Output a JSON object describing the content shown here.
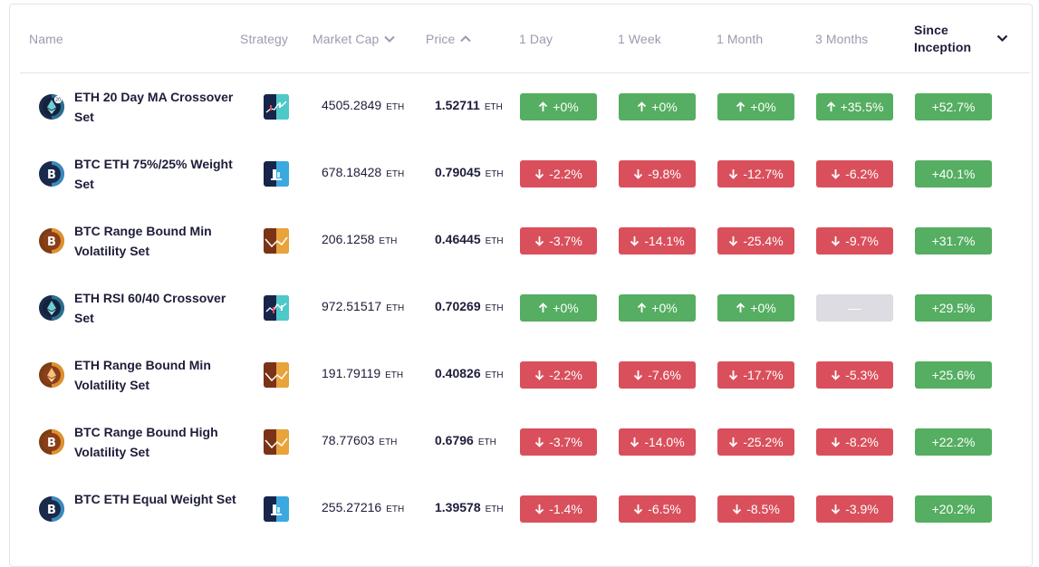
{
  "header": {
    "name": "Name",
    "strategy": "Strategy",
    "market_cap": "Market Cap",
    "price": "Price",
    "day": "1 Day",
    "week": "1 Week",
    "month": "1 Month",
    "three_months": "3 Months",
    "since_inception_line1": "Since",
    "since_inception_line2": "Inception"
  },
  "colors": {
    "up": "#55ae61",
    "down": "#d9505c",
    "neutral": "#dcdce2",
    "text": "#1d1d3a",
    "header_text": "#9b9bb0"
  },
  "rows": [
    {
      "asset_icon": "eth-20-icon",
      "name": "ETH 20 Day MA Crossover Set",
      "strategy_icon": "ma-crossover-strategy-icon",
      "market_cap": "4505.2849",
      "mcap_unit": "ETH",
      "price": "1.52711",
      "price_unit": "ETH",
      "day": {
        "text": "+0%",
        "dir": "up"
      },
      "week": {
        "text": "+0%",
        "dir": "up"
      },
      "month": {
        "text": "+0%",
        "dir": "up"
      },
      "three_months": {
        "text": "+35.5%",
        "dir": "up"
      },
      "since_inception": {
        "text": "+52.7%",
        "dir": "up"
      }
    },
    {
      "asset_icon": "btc-eth-icon",
      "name": "BTC ETH 75%/25% Weight Set",
      "strategy_icon": "weight-rebalance-strategy-icon",
      "market_cap": "678.18428",
      "mcap_unit": "ETH",
      "price": "0.79045",
      "price_unit": "ETH",
      "day": {
        "text": "-2.2%",
        "dir": "down"
      },
      "week": {
        "text": "-9.8%",
        "dir": "down"
      },
      "month": {
        "text": "-12.7%",
        "dir": "down"
      },
      "three_months": {
        "text": "-6.2%",
        "dir": "down"
      },
      "since_inception": {
        "text": "+40.1%",
        "dir": "up"
      }
    },
    {
      "asset_icon": "btc-icon",
      "name": "BTC Range Bound Min Volatility Set",
      "strategy_icon": "range-bound-strategy-icon",
      "market_cap": "206.1258",
      "mcap_unit": "ETH",
      "price": "0.46445",
      "price_unit": "ETH",
      "day": {
        "text": "-3.7%",
        "dir": "down"
      },
      "week": {
        "text": "-14.1%",
        "dir": "down"
      },
      "month": {
        "text": "-25.4%",
        "dir": "down"
      },
      "three_months": {
        "text": "-9.7%",
        "dir": "down"
      },
      "since_inception": {
        "text": "+31.7%",
        "dir": "up"
      }
    },
    {
      "asset_icon": "eth-icon",
      "name": "ETH RSI 60/40 Crossover Set",
      "strategy_icon": "rsi-crossover-strategy-icon",
      "market_cap": "972.51517",
      "mcap_unit": "ETH",
      "price": "0.70269",
      "price_unit": "ETH",
      "day": {
        "text": "+0%",
        "dir": "up"
      },
      "week": {
        "text": "+0%",
        "dir": "up"
      },
      "month": {
        "text": "+0%",
        "dir": "up"
      },
      "three_months": {
        "text": "—",
        "dir": "neutral"
      },
      "since_inception": {
        "text": "+29.5%",
        "dir": "up"
      }
    },
    {
      "asset_icon": "eth-range-icon",
      "name": "ETH Range Bound Min Volatility Set",
      "strategy_icon": "range-bound-strategy-icon",
      "market_cap": "191.79119",
      "mcap_unit": "ETH",
      "price": "0.40826",
      "price_unit": "ETH",
      "day": {
        "text": "-2.2%",
        "dir": "down"
      },
      "week": {
        "text": "-7.6%",
        "dir": "down"
      },
      "month": {
        "text": "-17.7%",
        "dir": "down"
      },
      "three_months": {
        "text": "-5.3%",
        "dir": "down"
      },
      "since_inception": {
        "text": "+25.6%",
        "dir": "up"
      }
    },
    {
      "asset_icon": "btc-icon",
      "name": "BTC Range Bound High Volatility Set",
      "strategy_icon": "range-bound-strategy-icon",
      "market_cap": "78.77603",
      "mcap_unit": "ETH",
      "price": "0.6796",
      "price_unit": "ETH",
      "day": {
        "text": "-3.7%",
        "dir": "down"
      },
      "week": {
        "text": "-14.0%",
        "dir": "down"
      },
      "month": {
        "text": "-25.2%",
        "dir": "down"
      },
      "three_months": {
        "text": "-8.2%",
        "dir": "down"
      },
      "since_inception": {
        "text": "+22.2%",
        "dir": "up"
      }
    },
    {
      "asset_icon": "btc-eth-icon",
      "name": "BTC ETH Equal Weight Set",
      "strategy_icon": "weight-rebalance-strategy-icon",
      "market_cap": "255.27216",
      "mcap_unit": "ETH",
      "price": "1.39578",
      "price_unit": "ETH",
      "day": {
        "text": "-1.4%",
        "dir": "down"
      },
      "week": {
        "text": "-6.5%",
        "dir": "down"
      },
      "month": {
        "text": "-8.5%",
        "dir": "down"
      },
      "three_months": {
        "text": "-3.9%",
        "dir": "down"
      },
      "since_inception": {
        "text": "+20.2%",
        "dir": "up"
      }
    }
  ]
}
